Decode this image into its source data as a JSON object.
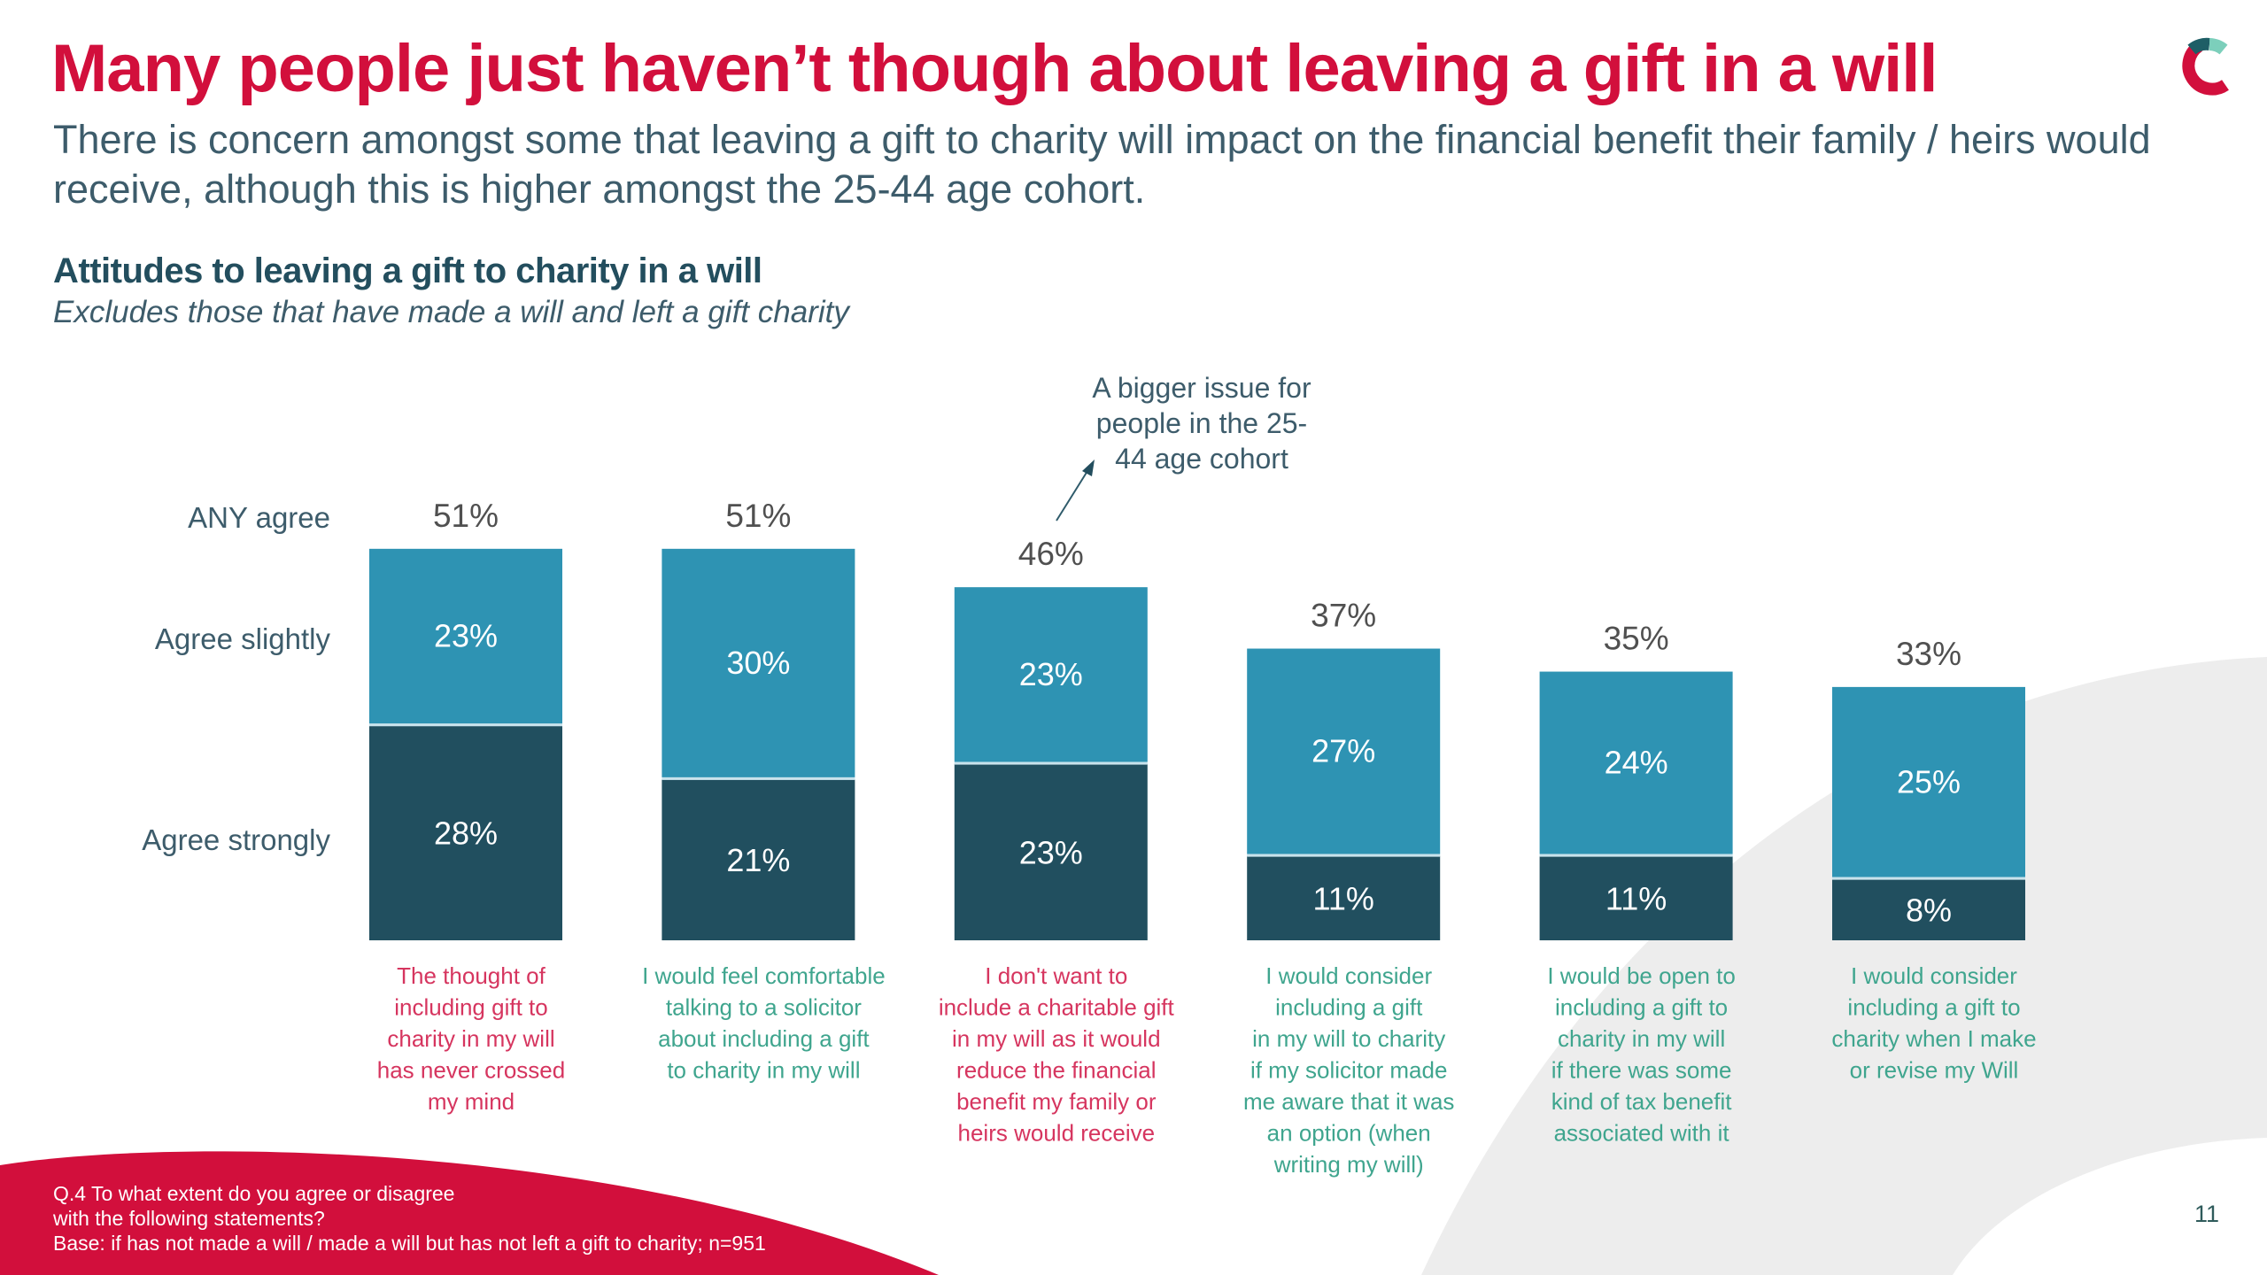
{
  "slide": {
    "title": "Many people just haven’t though about leaving a gift in a will",
    "subtitle": "There is concern amongst some that leaving a gift to charity will impact on the financial benefit their family / heirs would receive, although this is higher amongst the 25-44 age cohort.",
    "chart_title": "Attitudes to leaving a gift to charity in a will",
    "chart_note": "Excludes those that have made a will and left a gift charity",
    "footer": [
      "Q.4 To what extent do you agree or disagree",
      "with the following statements?",
      "Base: if has not made a will / made a will but has not left a gift to charity; n=951"
    ],
    "page_number": "11",
    "logo": "c-ring-logo-icon"
  },
  "colors": {
    "brand_red": "#D20F3C",
    "agree_slightly": "#2E93B3",
    "agree_strongly": "#214F5F",
    "negative_statement": "#D6355F",
    "positive_statement": "#3FA58E",
    "text_dark": "#3D5C6B",
    "total_label": "#505050",
    "background_shape": "#EDEDED"
  },
  "chart_data": {
    "type": "bar",
    "stacked": true,
    "title": "Attitudes to leaving a gift to charity in a will",
    "subtitle": "Excludes those that have made a will and left a gift charity",
    "row_labels": [
      "ANY agree",
      "Agree slightly",
      "Agree strongly"
    ],
    "categories": [
      {
        "lines": [
          "The thought of",
          "including gift to",
          "charity in my will",
          "has never crossed",
          "my mind"
        ],
        "tone": "negative"
      },
      {
        "lines": [
          "I would feel comfortable",
          "talking to a solicitor",
          "about including a gift",
          "to charity in my will"
        ],
        "tone": "positive"
      },
      {
        "lines": [
          "I don't want to",
          "include a charitable gift",
          "in my will as it would",
          "reduce the financial",
          "benefit my family or",
          "heirs would receive"
        ],
        "tone": "negative"
      },
      {
        "lines": [
          "I would consider",
          "including a gift",
          "in my will to charity",
          "if my solicitor made",
          "me aware that it was",
          "an option (when",
          "writing my will)"
        ],
        "tone": "positive"
      },
      {
        "lines": [
          "I would be open to",
          "including a gift to",
          "charity in my will",
          "if there was some",
          "kind of tax benefit",
          "associated with it"
        ],
        "tone": "positive"
      },
      {
        "lines": [
          "I would consider",
          "including a gift to",
          "charity when I make",
          "or revise my Will"
        ],
        "tone": "positive"
      }
    ],
    "series": [
      {
        "name": "Agree strongly",
        "values": [
          28,
          21,
          23,
          11,
          11,
          8
        ],
        "labels": [
          "28%",
          "21%",
          "23%",
          "11%",
          "11%",
          "8%"
        ]
      },
      {
        "name": "Agree slightly",
        "values": [
          23,
          30,
          23,
          27,
          24,
          25
        ],
        "labels": [
          "23%",
          "30%",
          "23%",
          "27%",
          "24%",
          "25%"
        ]
      }
    ],
    "totals": {
      "name": "ANY agree",
      "values": [
        51,
        51,
        46,
        37,
        35,
        33
      ],
      "labels": [
        "51%",
        "51%",
        "46%",
        "37%",
        "35%",
        "33%"
      ]
    },
    "unit": "%",
    "ylim": [
      0,
      51
    ],
    "grid": false,
    "axes_visible": false,
    "annotation": {
      "text_lines": [
        "A bigger issue for",
        "people in the 25-",
        "44 age cohort"
      ],
      "target_category_index": 2
    }
  }
}
